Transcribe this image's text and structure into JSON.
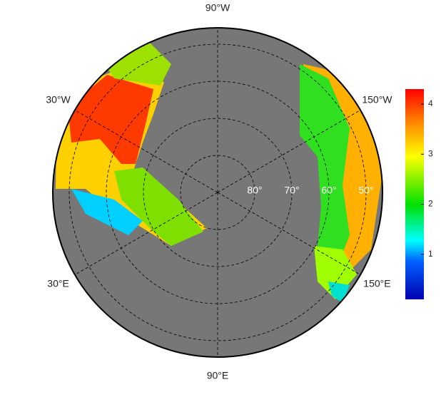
{
  "map": {
    "meridians": [
      {
        "value": -90,
        "label": "90°W"
      },
      {
        "value": -30,
        "label": "30°W"
      },
      {
        "value": -150,
        "label": "150°W"
      },
      {
        "value": 30,
        "label": "30°E"
      },
      {
        "value": 150,
        "label": "150°E"
      },
      {
        "value": 90,
        "label": "90°E"
      }
    ],
    "parallels": [
      {
        "value": 80,
        "label": "80°"
      },
      {
        "value": 70,
        "label": "70°"
      },
      {
        "value": 60,
        "label": "60°"
      },
      {
        "value": 50,
        "label": "50°"
      }
    ]
  },
  "colorbar": {
    "lim": [
      0.1,
      4.3
    ],
    "ticks": [
      1,
      2,
      3,
      4
    ]
  }
}
